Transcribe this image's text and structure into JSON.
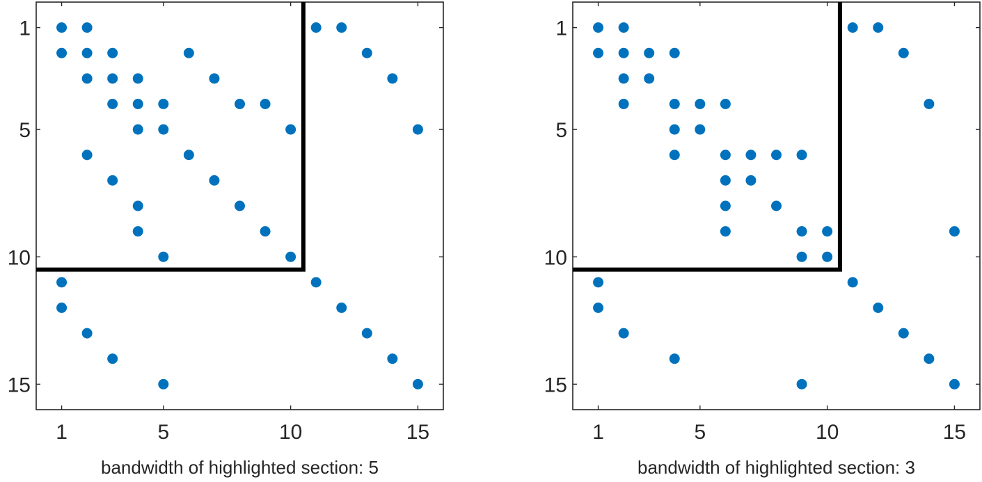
{
  "colors": {
    "marker": "#0072BD",
    "highlight_line": "#000000",
    "axes": "#262626",
    "background": "#ffffff"
  },
  "chart_data": [
    {
      "type": "scatter",
      "title": "",
      "xlabel": "bandwidth of highlighted section: 5",
      "ylabel": "",
      "xlim": [
        0,
        16
      ],
      "ylim": [
        0,
        16
      ],
      "y_reversed": true,
      "grid": false,
      "xticks": [
        1,
        5,
        10,
        15
      ],
      "yticks": [
        1,
        5,
        10,
        15
      ],
      "highlight_section_end": 10.5,
      "points": [
        [
          1,
          1
        ],
        [
          2,
          1
        ],
        [
          11,
          1
        ],
        [
          12,
          1
        ],
        [
          1,
          2
        ],
        [
          2,
          2
        ],
        [
          3,
          2
        ],
        [
          6,
          2
        ],
        [
          13,
          2
        ],
        [
          2,
          3
        ],
        [
          3,
          3
        ],
        [
          4,
          3
        ],
        [
          7,
          3
        ],
        [
          14,
          3
        ],
        [
          3,
          4
        ],
        [
          4,
          4
        ],
        [
          5,
          4
        ],
        [
          8,
          4
        ],
        [
          9,
          4
        ],
        [
          4,
          5
        ],
        [
          5,
          5
        ],
        [
          10,
          5
        ],
        [
          15,
          5
        ],
        [
          2,
          6
        ],
        [
          6,
          6
        ],
        [
          3,
          7
        ],
        [
          7,
          7
        ],
        [
          4,
          8
        ],
        [
          8,
          8
        ],
        [
          4,
          9
        ],
        [
          9,
          9
        ],
        [
          5,
          10
        ],
        [
          10,
          10
        ],
        [
          1,
          11
        ],
        [
          11,
          11
        ],
        [
          1,
          12
        ],
        [
          12,
          12
        ],
        [
          2,
          13
        ],
        [
          13,
          13
        ],
        [
          3,
          14
        ],
        [
          14,
          14
        ],
        [
          5,
          15
        ],
        [
          15,
          15
        ]
      ]
    },
    {
      "type": "scatter",
      "title": "",
      "xlabel": "bandwidth of highlighted section: 3",
      "ylabel": "",
      "xlim": [
        0,
        16
      ],
      "ylim": [
        0,
        16
      ],
      "y_reversed": true,
      "grid": false,
      "xticks": [
        1,
        5,
        10,
        15
      ],
      "yticks": [
        1,
        5,
        10,
        15
      ],
      "highlight_section_end": 10.5,
      "points": [
        [
          1,
          1
        ],
        [
          2,
          1
        ],
        [
          11,
          1
        ],
        [
          12,
          1
        ],
        [
          1,
          2
        ],
        [
          2,
          2
        ],
        [
          3,
          2
        ],
        [
          4,
          2
        ],
        [
          13,
          2
        ],
        [
          2,
          3
        ],
        [
          3,
          3
        ],
        [
          2,
          4
        ],
        [
          4,
          4
        ],
        [
          5,
          4
        ],
        [
          6,
          4
        ],
        [
          14,
          4
        ],
        [
          4,
          5
        ],
        [
          5,
          5
        ],
        [
          4,
          6
        ],
        [
          6,
          6
        ],
        [
          7,
          6
        ],
        [
          8,
          6
        ],
        [
          9,
          6
        ],
        [
          6,
          7
        ],
        [
          7,
          7
        ],
        [
          6,
          8
        ],
        [
          8,
          8
        ],
        [
          6,
          9
        ],
        [
          9,
          9
        ],
        [
          10,
          9
        ],
        [
          15,
          9
        ],
        [
          9,
          10
        ],
        [
          10,
          10
        ],
        [
          1,
          11
        ],
        [
          11,
          11
        ],
        [
          1,
          12
        ],
        [
          12,
          12
        ],
        [
          2,
          13
        ],
        [
          13,
          13
        ],
        [
          4,
          14
        ],
        [
          14,
          14
        ],
        [
          9,
          15
        ],
        [
          15,
          15
        ]
      ]
    }
  ]
}
